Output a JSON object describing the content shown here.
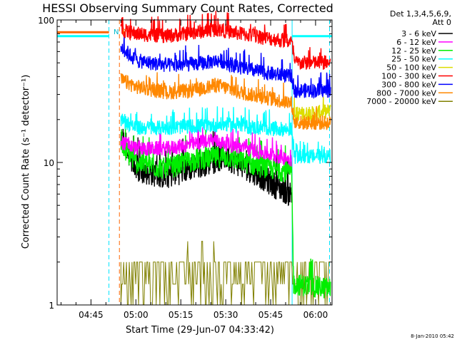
{
  "chart_data": {
    "type": "line",
    "title": "HESSI Observing Summary Count Rates, Corrected",
    "xlabel": "Start Time (29-Jun-07 04:33:42)",
    "ylabel": "Corrected Count Rate (s⁻¹ detector⁻¹)",
    "yscale": "log",
    "ylim": [
      1,
      100
    ],
    "xlim": [
      "04:33:42",
      "06:05:30"
    ],
    "x_ticks": [
      "04:45",
      "05:00",
      "05:15",
      "05:30",
      "05:45",
      "06:00"
    ],
    "y_ticks": [
      "1",
      "10",
      "100"
    ],
    "legend_header": [
      "Det 1,3,4,5,6,9,",
      "Att 0"
    ],
    "legend_position": "right",
    "annotations": [
      "N",
      "F"
    ],
    "vertical_markers": [
      {
        "time": "04:51:00",
        "color": "#00e5ff",
        "style": "dashed"
      },
      {
        "time": "04:54:30",
        "color": "#ff6600",
        "style": "dashed"
      },
      {
        "time": "05:52:10",
        "color": "#00e5ff",
        "style": "solid"
      },
      {
        "time": "06:04:40",
        "color": "#00e5ff",
        "style": "dashed"
      }
    ],
    "series": [
      {
        "name": "3 - 6 keV",
        "color": "#000000",
        "x": [
          "04:55",
          "05:00",
          "05:10",
          "05:20",
          "05:30",
          "05:40",
          "05:46",
          "05:52"
        ],
        "values": [
          16,
          9,
          8,
          9.5,
          11,
          8.5,
          7,
          6
        ]
      },
      {
        "name": "6 - 12 keV",
        "color": "#ff00ff",
        "x": [
          "04:55",
          "05:00",
          "05:10",
          "05:20",
          "05:25",
          "05:30",
          "05:40",
          "05:52"
        ],
        "values": [
          14,
          12.5,
          12.5,
          13.5,
          14.5,
          13.5,
          12,
          10.5
        ]
      },
      {
        "name": "12 - 25 keV",
        "color": "#00ee00",
        "x": [
          "04:55",
          "05:00",
          "05:10",
          "05:20",
          "05:30",
          "05:40",
          "05:52",
          "05:52:40",
          "06:05"
        ],
        "values": [
          13,
          10,
          9,
          10.5,
          11,
          9.5,
          8.5,
          1.4,
          1.3
        ]
      },
      {
        "name": "25 - 50 keV",
        "color": "#00ffff",
        "x": [
          "04:55",
          "05:00",
          "05:10",
          "05:20",
          "05:30",
          "05:40",
          "05:52",
          "05:53",
          "06:05"
        ],
        "values": [
          20,
          17.5,
          17.5,
          18,
          18.5,
          17.5,
          17,
          11,
          11
        ]
      },
      {
        "name": "50 - 100 keV",
        "color": "#dddd00",
        "x": [
          "05:52:30",
          "05:58",
          "06:05"
        ],
        "values": [
          22,
          22,
          23
        ]
      },
      {
        "name": "100 - 300 keV",
        "color": "#ff0000",
        "x": [
          "04:55",
          "05:00",
          "05:10",
          "05:20",
          "05:27",
          "05:35",
          "05:45",
          "05:52",
          "05:53",
          "06:05"
        ],
        "values": [
          85,
          80,
          77,
          82,
          86,
          80,
          74,
          70,
          50,
          50
        ]
      },
      {
        "name": "300 - 800 keV",
        "color": "#0000ff",
        "x": [
          "04:55",
          "05:00",
          "05:10",
          "05:20",
          "05:28",
          "05:35",
          "05:45",
          "05:52",
          "05:53",
          "06:05"
        ],
        "values": [
          65,
          52,
          48,
          49,
          52,
          46,
          42,
          40,
          32,
          32
        ]
      },
      {
        "name": "800 - 7000 keV",
        "color": "#ff8800",
        "x": [
          "04:55",
          "05:00",
          "05:10",
          "05:20",
          "05:27",
          "05:35",
          "05:45",
          "05:52",
          "05:53",
          "06:05"
        ],
        "values": [
          38,
          34,
          31,
          32,
          35,
          31,
          28,
          26,
          19,
          19
        ]
      },
      {
        "name": "7000 - 20000 keV",
        "color": "#808000",
        "x": [
          "04:55",
          "05:05",
          "05:12",
          "05:20",
          "05:30",
          "05:40",
          "05:50",
          "05:55",
          "06:05"
        ],
        "values": [
          2,
          2,
          1,
          2,
          2,
          2,
          2,
          2,
          2
        ]
      }
    ],
    "pre_series": [
      {
        "color": "#00ffff",
        "x": [
          "04:33:42",
          "04:51:00"
        ],
        "values": [
          77,
          77
        ]
      },
      {
        "color": "#ff6600",
        "x": [
          "04:33:42",
          "04:51:00"
        ],
        "values": [
          82,
          82
        ]
      },
      {
        "color": "#00ffff",
        "x": [
          "05:52:10",
          "06:05:30"
        ],
        "values": [
          77,
          77
        ]
      }
    ]
  },
  "footer_timestamp": "8-Jan-2010 05:42"
}
